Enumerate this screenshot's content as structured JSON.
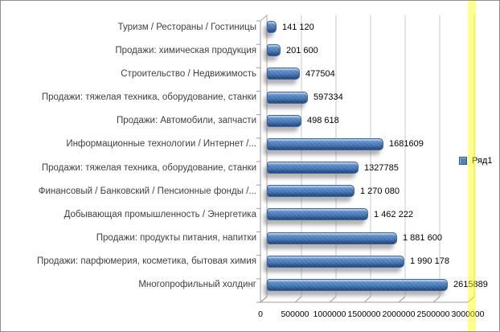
{
  "chart_data": {
    "type": "bar",
    "orientation": "horizontal",
    "style": "3d",
    "title": "",
    "categories": [
      "Туризм / Рестораны / Гостиницы",
      "Продажи: химическая продукция",
      "Строительство / Недвижимость",
      "Продажи: тяжелая техника, оборудование, станки",
      "Продажи: Автомобили, запчасти",
      "Информационные технологии / Интернет /...",
      "Продажи: тяжелая техника, оборудование, станки",
      "Финансовый / Банковский / Пенсионные фонды /...",
      "Добывающая промышленность / Энергетика",
      "Продажи: продукты питания, напитки",
      "Продажи: парфюмерия, косметика, бытовая химия",
      "Многопрофильный холдинг"
    ],
    "values": [
      141120,
      201600,
      477504,
      597334,
      498618,
      1681609,
      1327785,
      1270080,
      1462222,
      1881600,
      1990178,
      2615889
    ],
    "value_labels": [
      "141 120",
      "201 600",
      "477504",
      "597334",
      "498 618",
      "1681609",
      "1327785",
      "1 270 080",
      "1 462 222",
      "1 881 600",
      "1 990 178",
      "2615889"
    ],
    "x_axis": {
      "min": 0,
      "max": 3000000,
      "tick_interval": 500000,
      "ticks": [
        0,
        500000,
        1000000,
        1500000,
        2000000,
        2500000,
        3000000
      ],
      "tick_labels": [
        "0",
        "500000",
        "1000000",
        "1500000",
        "2000000",
        "2500000",
        "3000000"
      ]
    },
    "grid": true,
    "data_labels_visible": true,
    "bar_color": "#4F81BD",
    "legend_position": "middle-right",
    "legend": [
      {
        "label": "Ряд1",
        "color": "#4F81BD"
      }
    ]
  },
  "colors": {
    "gridline": "#C9C9C9",
    "axis": "#9E9E9E",
    "wall_border": "#ABABAB",
    "category_text": "#3F3F3F",
    "value_text": "#000000",
    "frame_border": "#8F8F8F",
    "highlight_band": "#FFFF00"
  },
  "overlay": {
    "highlight_band": {
      "color": "#FFFF00",
      "opacity": 0.45
    }
  }
}
